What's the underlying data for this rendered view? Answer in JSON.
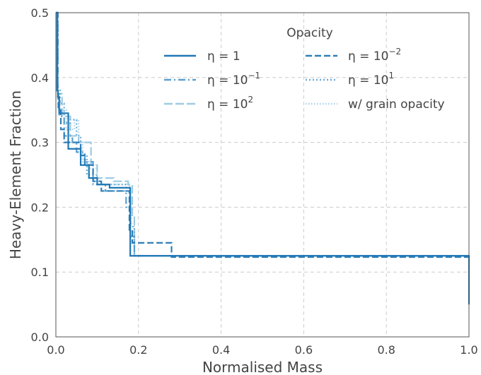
{
  "chart_data": {
    "type": "line",
    "title": "",
    "xlabel": "Normalised Mass",
    "ylabel": "Heavy-Element Fraction",
    "xlim": [
      0,
      1
    ],
    "ylim": [
      0,
      0.5
    ],
    "xticks": [
      0.0,
      0.2,
      0.4,
      0.6,
      0.8,
      1.0
    ],
    "xtick_labels": [
      "0.0",
      "0.2",
      "0.4",
      "0.6",
      "0.8",
      "1.0"
    ],
    "yticks": [
      0.0,
      0.1,
      0.2,
      0.3,
      0.4,
      0.5
    ],
    "ytick_labels": [
      "0.0",
      "0.1",
      "0.2",
      "0.3",
      "0.4",
      "0.5"
    ],
    "grid": true,
    "legend": {
      "title": "Opacity",
      "placement": "top-right",
      "columns": 2
    },
    "series": [
      {
        "name": "η = 1",
        "name_base": "η = 1",
        "name_exp": "",
        "color": "#1f77b4",
        "dash": "solid",
        "x": [
          0.0,
          0.002,
          0.003,
          0.004,
          0.005,
          0.008,
          0.01,
          0.03,
          0.04,
          0.06,
          0.07,
          0.08,
          0.1,
          0.13,
          0.16,
          0.175,
          0.18,
          0.19,
          1.0,
          1.0
        ],
        "y": [
          0.5,
          0.5,
          0.38,
          0.38,
          0.37,
          0.345,
          0.345,
          0.29,
          0.29,
          0.265,
          0.265,
          0.245,
          0.235,
          0.23,
          0.23,
          0.23,
          0.125,
          0.125,
          0.125,
          0.05
        ]
      },
      {
        "name": "η = 10^-2",
        "name_base": "η = 10",
        "name_exp": "−2",
        "color": "#2e7fb8",
        "dash": "dashed",
        "x": [
          0.0,
          0.004,
          0.006,
          0.012,
          0.02,
          0.04,
          0.06,
          0.07,
          0.09,
          0.11,
          0.15,
          0.178,
          0.185,
          0.28,
          0.28,
          1.0
        ],
        "y": [
          0.5,
          0.38,
          0.35,
          0.32,
          0.3,
          0.3,
          0.28,
          0.265,
          0.24,
          0.225,
          0.225,
          0.165,
          0.145,
          0.145,
          0.123,
          0.123
        ]
      },
      {
        "name": "η = 10^-1",
        "name_base": "η = 10",
        "name_exp": "−1",
        "color": "#5a9fd0",
        "dash": "dashdot",
        "x": [
          0.0,
          0.005,
          0.008,
          0.02,
          0.04,
          0.05,
          0.07,
          0.09,
          0.12,
          0.17,
          0.18,
          0.19,
          1.0
        ],
        "y": [
          0.5,
          0.37,
          0.34,
          0.31,
          0.3,
          0.285,
          0.27,
          0.235,
          0.225,
          0.2,
          0.155,
          0.125,
          0.125
        ]
      },
      {
        "name": "η = 10^1",
        "name_base": "η = 10",
        "name_exp": "1",
        "color": "#6eaed9",
        "dash": "dotted",
        "x": [
          0.0,
          0.004,
          0.01,
          0.02,
          0.035,
          0.05,
          0.06,
          0.075,
          0.1,
          0.14,
          0.17,
          0.18,
          0.19,
          1.0
        ],
        "y": [
          0.5,
          0.38,
          0.36,
          0.33,
          0.335,
          0.31,
          0.28,
          0.25,
          0.235,
          0.235,
          0.225,
          0.17,
          0.125,
          0.125
        ]
      },
      {
        "name": "η = 10^2",
        "name_base": "η = 10",
        "name_exp": "2",
        "color": "#9ecae1",
        "dash": "longdash",
        "x": [
          0.0,
          0.005,
          0.015,
          0.035,
          0.055,
          0.07,
          0.085,
          0.1,
          0.14,
          0.16,
          0.175,
          0.185,
          0.19,
          1.0
        ],
        "y": [
          0.5,
          0.375,
          0.34,
          0.31,
          0.3,
          0.3,
          0.265,
          0.245,
          0.24,
          0.24,
          0.235,
          0.185,
          0.125,
          0.125
        ]
      },
      {
        "name": "w/ grain opacity",
        "name_base": "w/ grain opacity",
        "name_exp": "",
        "color": "#a8d0e8",
        "dash": "dotted-dense",
        "x": [
          0.0,
          0.004,
          0.01,
          0.025,
          0.045,
          0.055,
          0.065,
          0.08,
          0.1,
          0.15,
          0.178,
          0.182,
          0.19,
          1.0
        ],
        "y": [
          0.5,
          0.365,
          0.35,
          0.32,
          0.335,
          0.3,
          0.27,
          0.26,
          0.235,
          0.235,
          0.215,
          0.175,
          0.125,
          0.125
        ]
      }
    ]
  }
}
